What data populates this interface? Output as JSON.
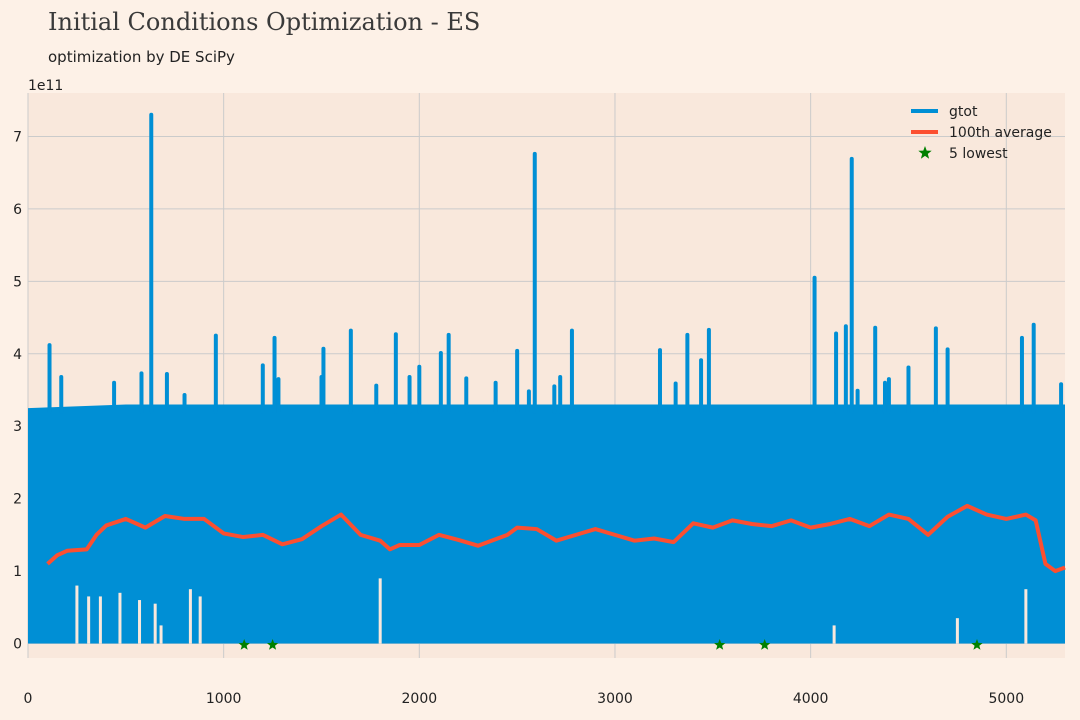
{
  "title": "Initial Conditions Optimization - ES",
  "subtitle": "optimization by DE SciPy",
  "chart_data": {
    "type": "line",
    "y_multiplier_label": "1e11",
    "xlim": [
      0,
      5300
    ],
    "ylim": [
      -0.2,
      7.6
    ],
    "x_ticks": [
      0,
      1000,
      2000,
      3000,
      4000,
      5000
    ],
    "y_ticks": [
      0,
      1,
      2,
      3,
      4,
      5,
      6,
      7
    ],
    "grid": true,
    "legend_position": "top-right",
    "colors": {
      "gtot": "#008fd5",
      "avg": "#fc4f30",
      "lowest": "#008000",
      "plot_bg": "#f9e8dc",
      "page_bg": "#fdf1e7",
      "grid": "#cbcbcb"
    },
    "series": [
      {
        "name": "gtot",
        "envelope_upper": [
          [
            0,
            3.25
          ],
          [
            500,
            3.3
          ],
          [
            1000,
            3.3
          ],
          [
            1500,
            3.3
          ],
          [
            2000,
            3.3
          ],
          [
            2500,
            3.3
          ],
          [
            3000,
            3.3
          ],
          [
            3500,
            3.3
          ],
          [
            4000,
            3.3
          ],
          [
            4500,
            3.3
          ],
          [
            5000,
            3.3
          ],
          [
            5300,
            3.3
          ]
        ],
        "envelope_lower": [
          [
            0,
            0.0
          ],
          [
            5300,
            0.0
          ]
        ],
        "peaks": [
          [
            110,
            4.12
          ],
          [
            170,
            3.68
          ],
          [
            440,
            3.6
          ],
          [
            580,
            3.73
          ],
          [
            630,
            7.3
          ],
          [
            710,
            3.72
          ],
          [
            800,
            3.43
          ],
          [
            960,
            4.25
          ],
          [
            1200,
            3.84
          ],
          [
            1260,
            4.22
          ],
          [
            1280,
            3.65
          ],
          [
            1500,
            3.68
          ],
          [
            1510,
            4.07
          ],
          [
            1650,
            4.32
          ],
          [
            1780,
            3.56
          ],
          [
            1880,
            4.27
          ],
          [
            1950,
            3.68
          ],
          [
            2000,
            3.82
          ],
          [
            2110,
            4.01
          ],
          [
            2150,
            4.26
          ],
          [
            2240,
            3.66
          ],
          [
            2390,
            3.6
          ],
          [
            2500,
            4.04
          ],
          [
            2560,
            3.48
          ],
          [
            2590,
            6.76
          ],
          [
            2690,
            3.55
          ],
          [
            2720,
            3.68
          ],
          [
            2780,
            4.32
          ],
          [
            3230,
            4.05
          ],
          [
            3310,
            3.59
          ],
          [
            3370,
            4.26
          ],
          [
            3440,
            3.91
          ],
          [
            3480,
            4.33
          ],
          [
            4020,
            5.05
          ],
          [
            4130,
            4.28
          ],
          [
            4180,
            4.38
          ],
          [
            4210,
            6.69
          ],
          [
            4240,
            3.49
          ],
          [
            4330,
            4.36
          ],
          [
            4380,
            3.6
          ],
          [
            4400,
            3.65
          ],
          [
            4500,
            3.81
          ],
          [
            4640,
            4.35
          ],
          [
            4700,
            4.06
          ],
          [
            5080,
            4.22
          ],
          [
            5140,
            4.4
          ],
          [
            5280,
            3.58
          ]
        ],
        "dips": [
          [
            250,
            0.8
          ],
          [
            310,
            0.65
          ],
          [
            370,
            0.65
          ],
          [
            470,
            0.7
          ],
          [
            570,
            0.6
          ],
          [
            650,
            0.55
          ],
          [
            680,
            0.25
          ],
          [
            830,
            0.75
          ],
          [
            880,
            0.65
          ],
          [
            1800,
            0.9
          ],
          [
            4120,
            0.25
          ],
          [
            4750,
            0.35
          ],
          [
            5100,
            0.75
          ]
        ]
      },
      {
        "name": "100th average",
        "points": [
          [
            100,
            1.1
          ],
          [
            150,
            1.22
          ],
          [
            200,
            1.28
          ],
          [
            300,
            1.3
          ],
          [
            350,
            1.5
          ],
          [
            400,
            1.63
          ],
          [
            500,
            1.72
          ],
          [
            600,
            1.6
          ],
          [
            700,
            1.76
          ],
          [
            800,
            1.72
          ],
          [
            900,
            1.72
          ],
          [
            1000,
            1.52
          ],
          [
            1100,
            1.47
          ],
          [
            1200,
            1.5
          ],
          [
            1300,
            1.37
          ],
          [
            1400,
            1.44
          ],
          [
            1500,
            1.62
          ],
          [
            1600,
            1.78
          ],
          [
            1700,
            1.5
          ],
          [
            1800,
            1.42
          ],
          [
            1850,
            1.3
          ],
          [
            1900,
            1.36
          ],
          [
            2000,
            1.36
          ],
          [
            2100,
            1.5
          ],
          [
            2200,
            1.43
          ],
          [
            2300,
            1.35
          ],
          [
            2400,
            1.45
          ],
          [
            2450,
            1.5
          ],
          [
            2500,
            1.6
          ],
          [
            2600,
            1.58
          ],
          [
            2700,
            1.42
          ],
          [
            2800,
            1.5
          ],
          [
            2900,
            1.58
          ],
          [
            3000,
            1.5
          ],
          [
            3100,
            1.42
          ],
          [
            3200,
            1.45
          ],
          [
            3300,
            1.4
          ],
          [
            3400,
            1.66
          ],
          [
            3500,
            1.6
          ],
          [
            3600,
            1.7
          ],
          [
            3700,
            1.65
          ],
          [
            3800,
            1.62
          ],
          [
            3900,
            1.7
          ],
          [
            4000,
            1.6
          ],
          [
            4100,
            1.65
          ],
          [
            4200,
            1.72
          ],
          [
            4300,
            1.62
          ],
          [
            4400,
            1.78
          ],
          [
            4500,
            1.72
          ],
          [
            4600,
            1.5
          ],
          [
            4700,
            1.75
          ],
          [
            4800,
            1.9
          ],
          [
            4900,
            1.78
          ],
          [
            5000,
            1.72
          ],
          [
            5100,
            1.78
          ],
          [
            5150,
            1.7
          ],
          [
            5200,
            1.1
          ],
          [
            5250,
            1.0
          ],
          [
            5300,
            1.05
          ]
        ]
      },
      {
        "name": "5 lowest",
        "points": [
          [
            1105,
            -0.02
          ],
          [
            1250,
            -0.02
          ],
          [
            3535,
            -0.02
          ],
          [
            3765,
            -0.02
          ],
          [
            4850,
            -0.02
          ]
        ]
      }
    ]
  }
}
